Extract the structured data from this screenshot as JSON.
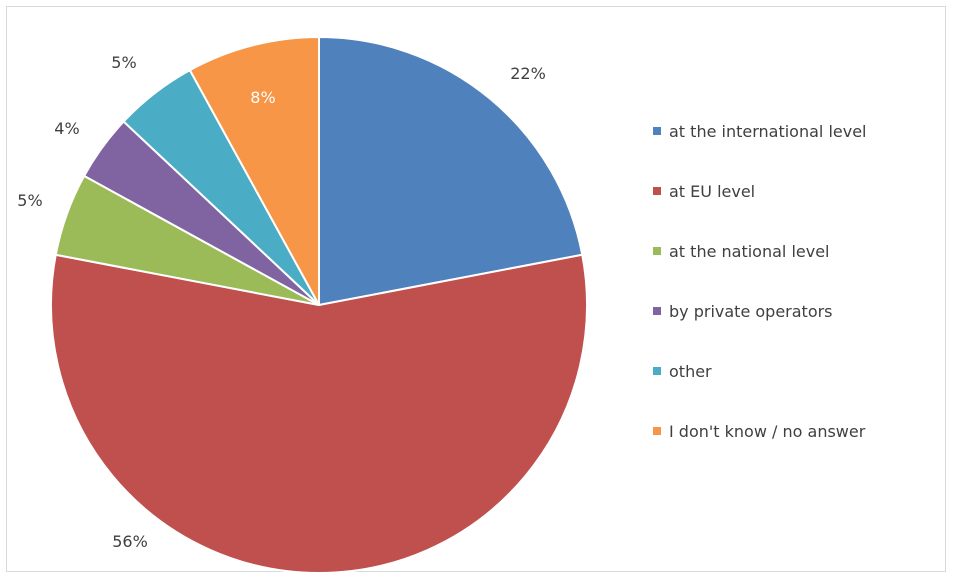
{
  "chart_data": {
    "type": "pie",
    "start_angle": "top, clockwise",
    "legend_position": "right",
    "slices": [
      {
        "label": "at the international level",
        "value": 22,
        "display": "22%",
        "color": "#4F81BD"
      },
      {
        "label": "at EU level",
        "value": 56,
        "display": "56%",
        "color": "#C0504D"
      },
      {
        "label": "at the national level",
        "value": 5,
        "display": "5%",
        "color": "#9BBB59"
      },
      {
        "label": "by private operators",
        "value": 4,
        "display": "4%",
        "color": "#8064A2"
      },
      {
        "label": "other",
        "value": 5,
        "display": "5%",
        "color": "#4BACC6"
      },
      {
        "label": "I don't know / no answer",
        "value": 8,
        "display": "8%",
        "color": "#F79646"
      }
    ]
  }
}
